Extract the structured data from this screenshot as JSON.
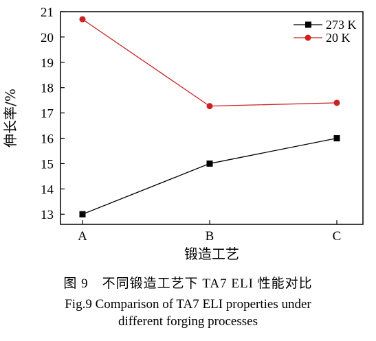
{
  "chart_data": {
    "type": "line",
    "categories": [
      "A",
      "B",
      "C"
    ],
    "xlabel": "锻造工艺",
    "ylabel": "伸长率/%",
    "ylim": [
      12.6,
      21
    ],
    "yticks": [
      13,
      14,
      15,
      16,
      17,
      18,
      19,
      20,
      21
    ],
    "grid": false,
    "legend_position": "top-right",
    "series": [
      {
        "name": "273 K",
        "values": [
          13.0,
          15.0,
          16.0
        ],
        "color": "#000000",
        "marker": "square"
      },
      {
        "name": "20 K",
        "values": [
          20.7,
          17.27,
          17.4
        ],
        "color": "#cc2222",
        "marker": "circle"
      }
    ]
  },
  "caption": {
    "cn": "图 9　不同锻造工艺下 TA7 ELI 性能对比",
    "en_line1": "Fig.9 Comparison of TA7 ELI properties under",
    "en_line2": "different forging processes"
  }
}
